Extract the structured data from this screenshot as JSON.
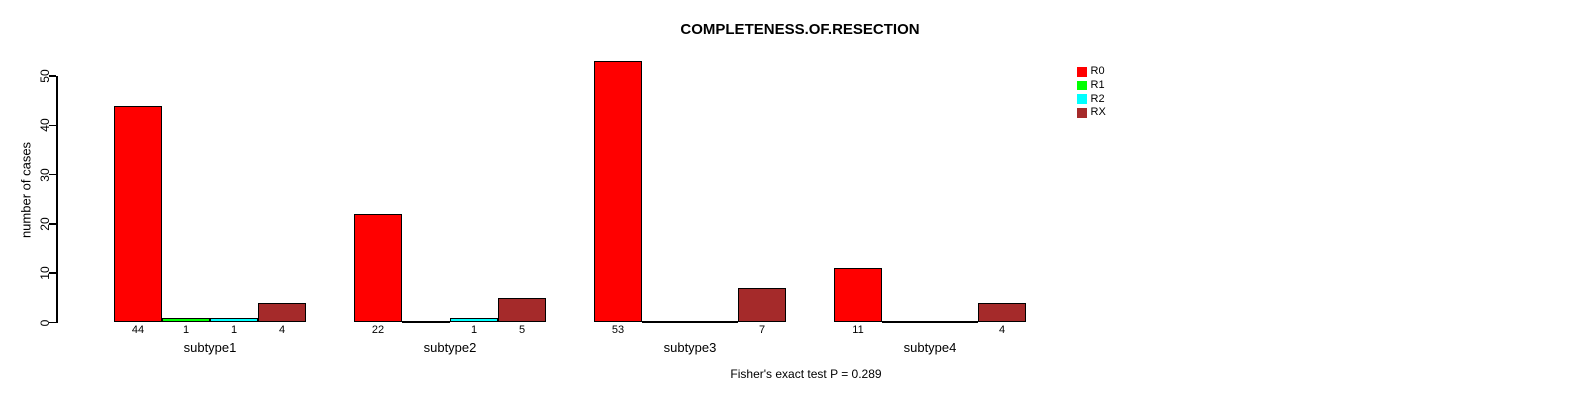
{
  "chart_data": {
    "type": "bar",
    "title": "COMPLETENESS.OF.RESECTION",
    "ylabel": "number of cases",
    "xlabel": "",
    "categories": [
      "subtype1",
      "subtype2",
      "subtype3",
      "subtype4"
    ],
    "series": [
      {
        "name": "R0",
        "color": "#FF0000",
        "values": [
          44,
          22,
          53,
          11
        ]
      },
      {
        "name": "R1",
        "color": "#00FF00",
        "values": [
          1,
          0,
          0,
          0
        ]
      },
      {
        "name": "R2",
        "color": "#00FFFF",
        "values": [
          1,
          1,
          0,
          0
        ]
      },
      {
        "name": "RX",
        "color": "#A52A2A",
        "values": [
          4,
          5,
          7,
          4
        ]
      }
    ],
    "yticks": [
      0,
      10,
      20,
      30,
      40,
      50
    ],
    "ylim": [
      0,
      50
    ],
    "grid": false,
    "legend_position": "top-right",
    "annotation": "Fisher's exact test P = 0.289"
  },
  "legend": {
    "items": [
      {
        "label": "R0",
        "color": "#FF0000"
      },
      {
        "label": "R1",
        "color": "#00FF00"
      },
      {
        "label": "R2",
        "color": "#00FFFF"
      },
      {
        "label": "RX",
        "color": "#A52A2A"
      }
    ]
  },
  "colors": {
    "axis": "#000000",
    "text": "#000000",
    "background": "#FFFFFF"
  }
}
